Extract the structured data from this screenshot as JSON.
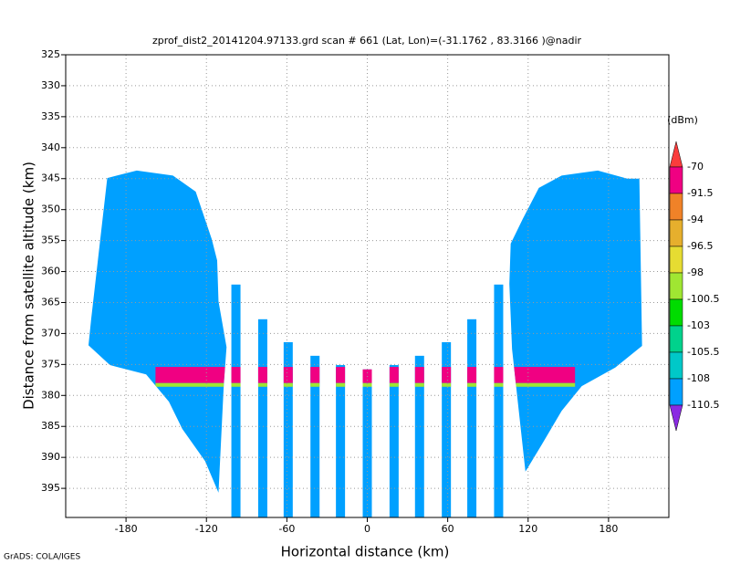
{
  "chart_data": {
    "type": "field",
    "title": "zprof_dist2_20141204.97133.grd  scan # 661  (Lat, Lon)=(-31.1762 , 83.3166 )@nadir",
    "x_label": "Horizontal distance (km)",
    "y_label": "Distance from satellite altitude (km)",
    "footer": "GrADS: COLA/IGES",
    "colorbar_label": "(dBm)",
    "xlim": [
      -225,
      225
    ],
    "ylim": [
      325,
      399.7
    ],
    "y_inverted": true,
    "grid": true,
    "xticks": [
      -180,
      -120,
      -60,
      0,
      60,
      120,
      180
    ],
    "yticks": [
      325,
      330,
      335,
      340,
      345,
      350,
      355,
      360,
      365,
      370,
      375,
      380,
      385,
      390,
      395
    ],
    "levels": [
      -70,
      -91.5,
      -94,
      -96.5,
      -98,
      -100.5,
      -103,
      -105.5,
      -108,
      -110.5
    ],
    "colors": [
      "#fa3c3c",
      "#f00082",
      "#f08228",
      "#e6af2d",
      "#e6dc32",
      "#a0e632",
      "#00dc00",
      "#00d28c",
      "#00c8c8",
      "#00a0ff",
      "#1e3cff",
      "#8a2be2"
    ],
    "wings": [
      {
        "value": -109,
        "x": [
          -194,
          -172,
          -145,
          -128,
          -116,
          -112,
          -111,
          -105,
          -107,
          -111,
          -121,
          -138,
          -148,
          -165,
          -192,
          -208,
          -206
        ],
        "y": [
          344.9,
          343.7,
          344.5,
          347.1,
          354.8,
          358.2,
          364.8,
          372.2,
          378,
          395.7,
          390.6,
          385.4,
          381,
          376.6,
          375.1,
          371.9,
          367.7
        ]
      },
      {
        "value": -109,
        "x": [
          194,
          172,
          145,
          128,
          116,
          107,
          106,
          108,
          118,
          130,
          145,
          160,
          185,
          205,
          203
        ],
        "y": [
          345,
          343.7,
          344.5,
          346.5,
          351.5,
          355.5,
          362,
          372.5,
          392.3,
          388,
          382.5,
          378.5,
          375.5,
          372,
          345
        ]
      }
    ],
    "stripes": {
      "value": -109,
      "x": [
        -98,
        -78,
        -59,
        -39,
        -20,
        0,
        20,
        39,
        59,
        78,
        98
      ],
      "top": [
        362.1,
        367.7,
        371.4,
        373.6,
        375.1,
        375.8,
        375.1,
        373.6,
        371.4,
        367.7,
        362.1
      ]
    },
    "band": {
      "value": -85,
      "x": [
        -158,
        155
      ],
      "y": [
        375.4,
        378
      ]
    },
    "band_edge": {
      "value": -99,
      "x": [
        -158,
        155
      ],
      "y": [
        378,
        378.6
      ]
    }
  }
}
